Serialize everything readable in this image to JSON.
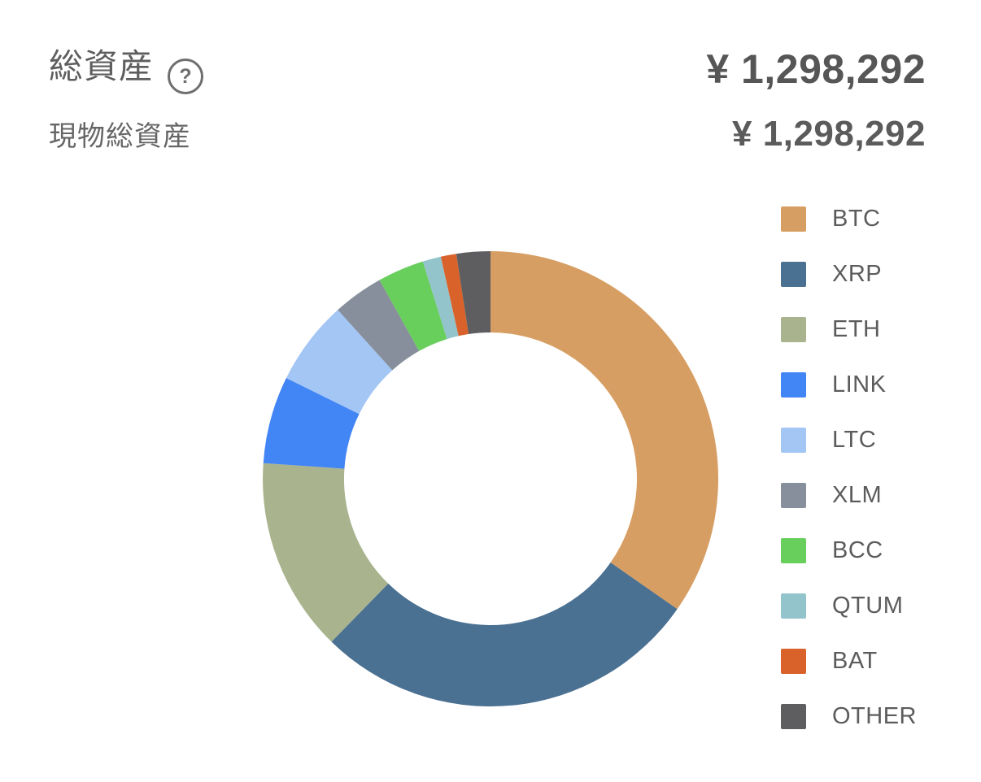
{
  "header": {
    "title": "総資産",
    "help_icon": "?",
    "total_value": "¥ 1,298,292",
    "spot_label": "現物総資産",
    "spot_value": "¥ 1,298,292"
  },
  "chart_data": {
    "type": "pie",
    "variant": "donut",
    "direction": "clockwise",
    "start_angle_deg": 0,
    "unit": "percent",
    "legend_position": "right",
    "segments": [
      {
        "label": "BTC",
        "value": 34.7,
        "color": "#D79E63"
      },
      {
        "label": "XRP",
        "value": 27.6,
        "color": "#4A7092"
      },
      {
        "label": "ETH",
        "value": 13.8,
        "color": "#A9B48F"
      },
      {
        "label": "LINK",
        "value": 6.2,
        "color": "#4285F4"
      },
      {
        "label": "LTC",
        "value": 6.0,
        "color": "#A3C6F5"
      },
      {
        "label": "XLM",
        "value": 3.6,
        "color": "#868F9B"
      },
      {
        "label": "BCC",
        "value": 3.3,
        "color": "#68CE5C"
      },
      {
        "label": "QTUM",
        "value": 1.3,
        "color": "#93C3CB"
      },
      {
        "label": "BAT",
        "value": 1.1,
        "color": "#D9622B"
      },
      {
        "label": "OTHER",
        "value": 2.4,
        "color": "#5E5E60"
      }
    ]
  }
}
